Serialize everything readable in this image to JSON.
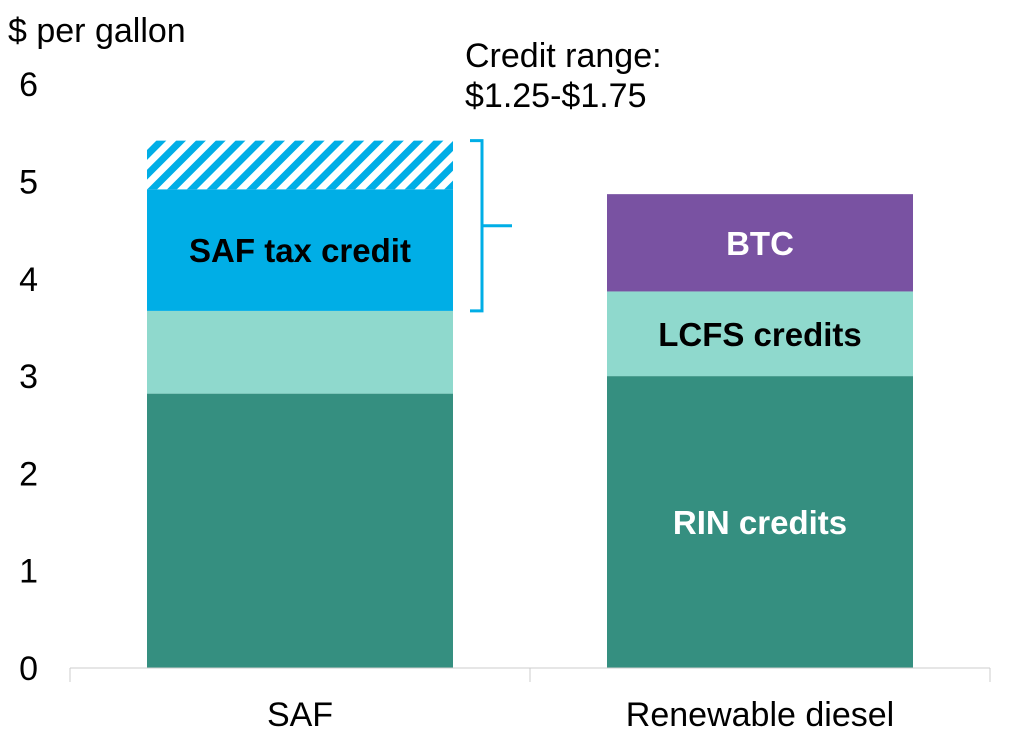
{
  "chart_data": {
    "type": "bar",
    "stacked": true,
    "ylabel": "$ per gallon",
    "ylim": [
      0,
      6
    ],
    "yticks": [
      "0",
      "1",
      "2",
      "3",
      "4",
      "5",
      "6"
    ],
    "categories": [
      "SAF",
      "Renewable diesel"
    ],
    "grid": false,
    "bars": [
      {
        "category": "SAF",
        "segments": [
          {
            "key": "rin",
            "value": 2.82,
            "color": "#358F80",
            "label": ""
          },
          {
            "key": "lcfs",
            "value": 0.85,
            "color": "#8FD9CD",
            "label": ""
          },
          {
            "key": "tax",
            "value": 1.25,
            "color": "#00AEE6",
            "label": "SAF  tax credit",
            "label_color": "#000000"
          },
          {
            "key": "range",
            "value": 0.5,
            "color": "#00AEE6",
            "pattern": "hatched",
            "label": ""
          }
        ]
      },
      {
        "category": "Renewable diesel",
        "segments": [
          {
            "key": "rin",
            "value": 3.0,
            "color": "#358F80",
            "label": "RIN credits",
            "label_color": "#ffffff"
          },
          {
            "key": "lcfs",
            "value": 0.87,
            "color": "#8FD9CD",
            "label": "LCFS credits",
            "label_color": "#000000"
          },
          {
            "key": "btc",
            "value": 1.0,
            "color": "#7952A2",
            "label": "BTC",
            "label_color": "#ffffff"
          }
        ]
      }
    ],
    "annotation": {
      "lines": [
        "Credit range:",
        "$1.25-$1.75"
      ],
      "bracket_from": 3.67,
      "bracket_to": 5.42,
      "bracket_color": "#00AEE6"
    }
  }
}
